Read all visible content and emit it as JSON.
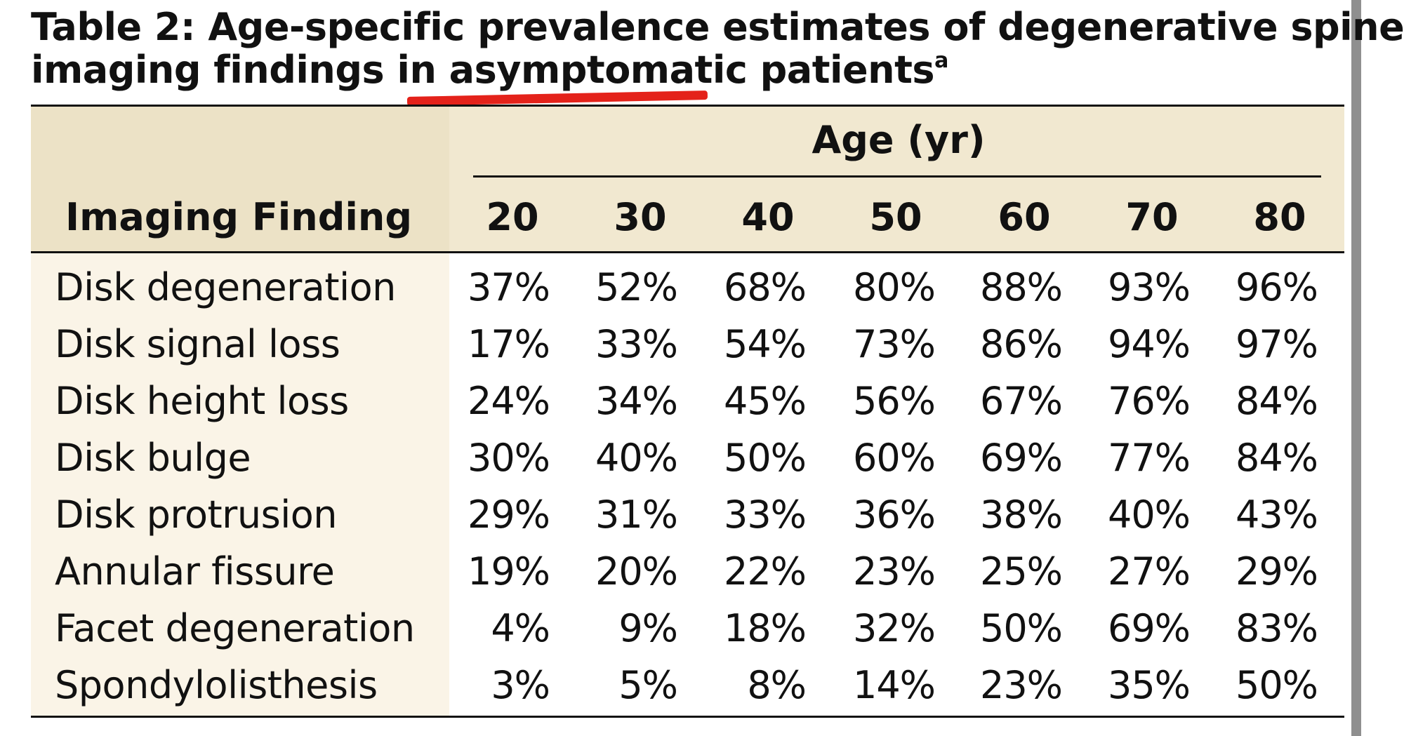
{
  "title": {
    "line1": "Table 2: Age-specific prevalence estimates of degenerative spine",
    "line2": "imaging findings in asymptomatic patients",
    "superscript": "a"
  },
  "header": {
    "finding_label": "Imaging Finding",
    "age_group_label": "Age (yr)",
    "ages": [
      "20",
      "30",
      "40",
      "50",
      "60",
      "70",
      "80"
    ]
  },
  "rows": [
    {
      "finding": "Disk degeneration",
      "values": [
        "37%",
        "52%",
        "68%",
        "80%",
        "88%",
        "93%",
        "96%"
      ]
    },
    {
      "finding": "Disk signal loss",
      "values": [
        "17%",
        "33%",
        "54%",
        "73%",
        "86%",
        "94%",
        "97%"
      ]
    },
    {
      "finding": "Disk height loss",
      "values": [
        "24%",
        "34%",
        "45%",
        "56%",
        "67%",
        "76%",
        "84%"
      ]
    },
    {
      "finding": "Disk bulge",
      "values": [
        "30%",
        "40%",
        "50%",
        "60%",
        "69%",
        "77%",
        "84%"
      ]
    },
    {
      "finding": "Disk protrusion",
      "values": [
        "29%",
        "31%",
        "33%",
        "36%",
        "38%",
        "40%",
        "43%"
      ]
    },
    {
      "finding": "Annular fissure",
      "values": [
        "19%",
        "20%",
        "22%",
        "23%",
        "25%",
        "27%",
        "29%"
      ]
    },
    {
      "finding": "Facet degeneration",
      "values": [
        "4%",
        "9%",
        "18%",
        "32%",
        "50%",
        "69%",
        "83%"
      ]
    },
    {
      "finding": "Spondylolisthesis",
      "values": [
        "3%",
        "5%",
        "8%",
        "14%",
        "23%",
        "35%",
        "50%"
      ]
    }
  ],
  "colors": {
    "header_bg": "#f1e8d0",
    "finding_column_bg": "#faf4e7",
    "annotation_underline": "#e4221a",
    "rule": "#111111"
  }
}
